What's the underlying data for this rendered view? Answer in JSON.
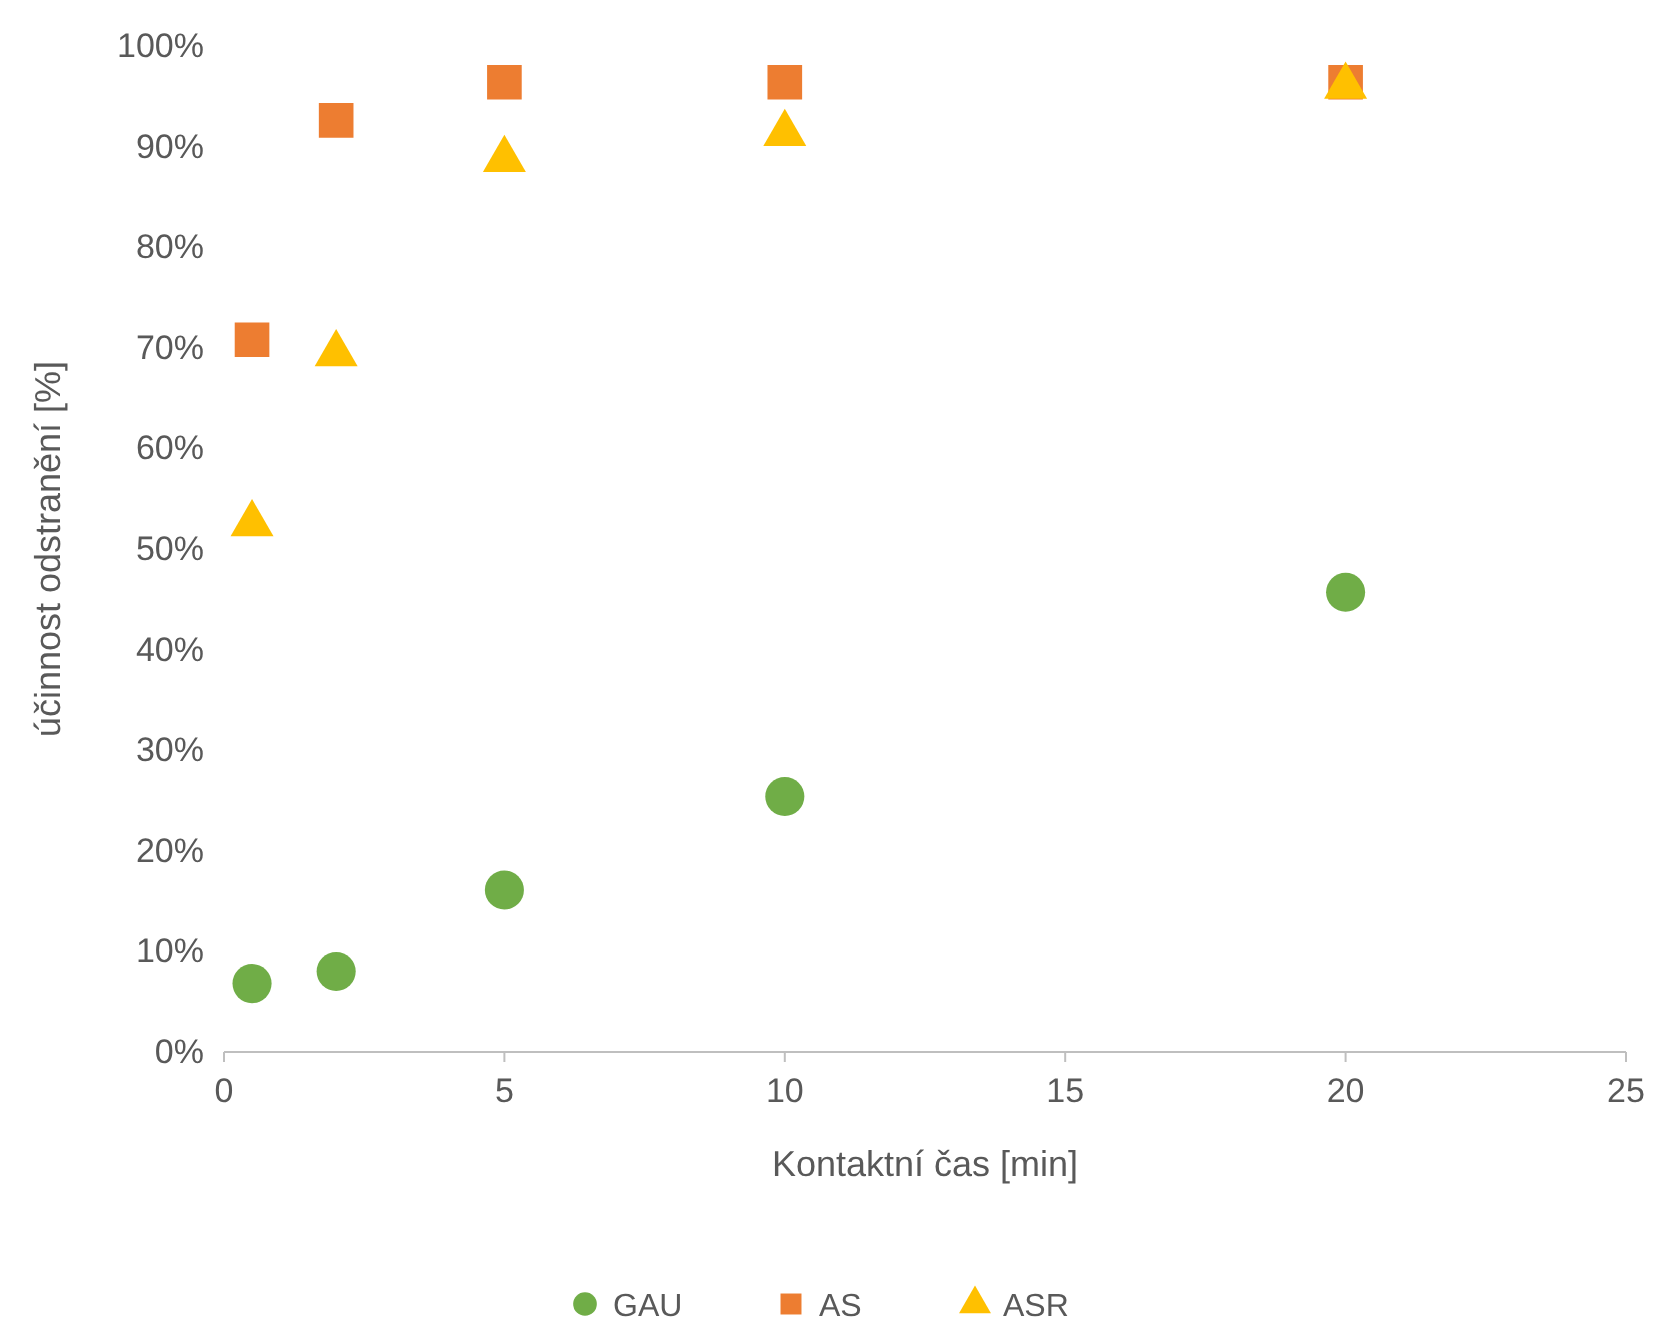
{
  "chart_data": {
    "type": "scatter",
    "xlabel": "Kontaktní čas [min]",
    "ylabel": "účinnost odstranění [%]",
    "xlim": [
      0,
      25
    ],
    "xticks": [
      0,
      5,
      10,
      15,
      20,
      25
    ],
    "ylim": [
      0,
      1
    ],
    "yticks": [
      {
        "value": 0,
        "label": "0%"
      },
      {
        "value": 0.1,
        "label": "10%"
      },
      {
        "value": 0.2,
        "label": "20%"
      },
      {
        "value": 0.3,
        "label": "30%"
      },
      {
        "value": 0.4,
        "label": "40%"
      },
      {
        "value": 0.5,
        "label": "50%"
      },
      {
        "value": 0.6,
        "label": "60%"
      },
      {
        "value": 0.7,
        "label": "70%"
      },
      {
        "value": 0.8,
        "label": "80%"
      },
      {
        "value": 0.9,
        "label": "90%"
      },
      {
        "value": 1,
        "label": "100%"
      }
    ],
    "grid": false,
    "legend": "bottom",
    "x": [
      0.5,
      2,
      5,
      10,
      20
    ],
    "series": [
      {
        "name": "GAU",
        "color": "#70ad47",
        "marker": "circle",
        "values": [
          0.068,
          0.08,
          0.161,
          0.254,
          0.457
        ]
      },
      {
        "name": "AS",
        "color": "#ed7d31",
        "marker": "square",
        "values": [
          0.708,
          0.926,
          0.964,
          0.964,
          0.964
        ]
      },
      {
        "name": "ASR",
        "color": "#ffc000",
        "marker": "triangle",
        "values": [
          0.525,
          0.694,
          0.887,
          0.913,
          0.96
        ]
      }
    ]
  }
}
